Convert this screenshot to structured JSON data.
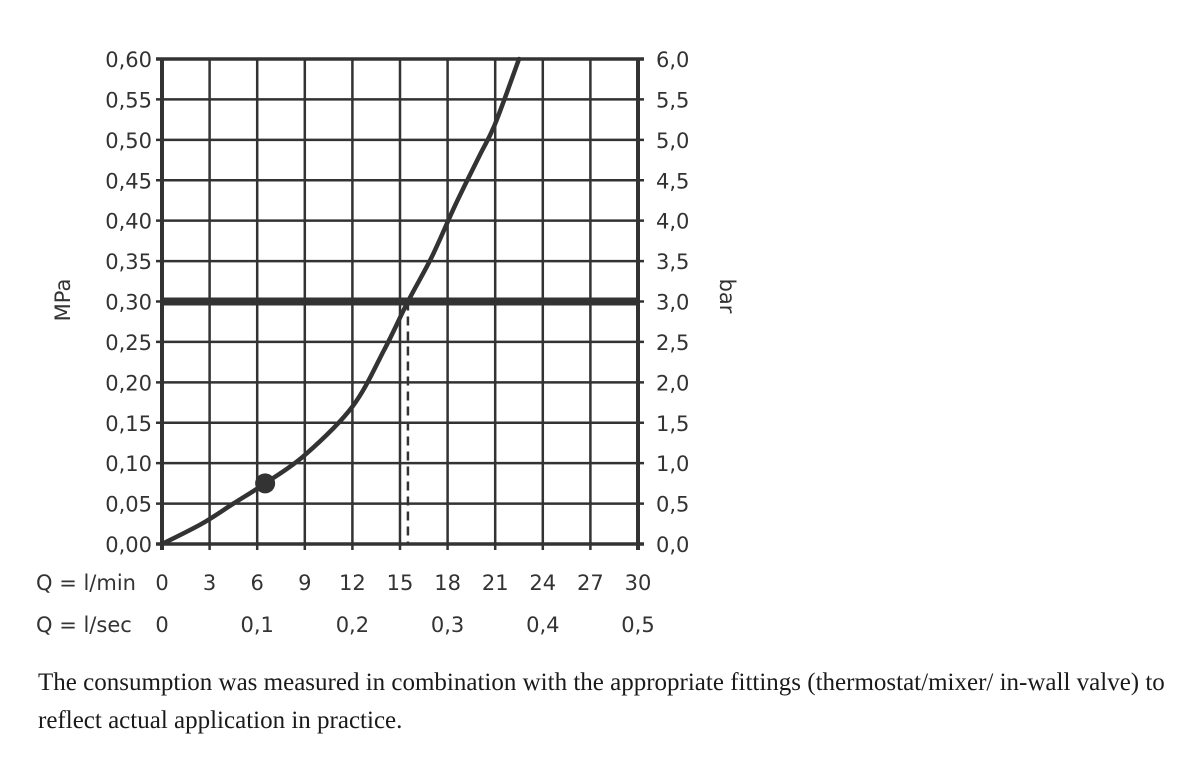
{
  "chart_data": {
    "type": "line",
    "title": "",
    "ylabel_left": "MPa",
    "ylabel_right": "bar",
    "xlabel_rows": [
      {
        "label": "Q = l/min",
        "ticks": [
          "0",
          "3",
          "6",
          "9",
          "12",
          "15",
          "18",
          "21",
          "24",
          "27",
          "30"
        ]
      },
      {
        "label": "Q = l/sec",
        "ticks": [
          "0",
          "0,1",
          "0,2",
          "0,3",
          "0,4",
          "0,5"
        ]
      }
    ],
    "y_ticks_left": [
      "0,00",
      "0,05",
      "0,10",
      "0,15",
      "0,20",
      "0,25",
      "0,30",
      "0,35",
      "0,40",
      "0,45",
      "0,50",
      "0,55",
      "0,60"
    ],
    "y_ticks_right": [
      "0,0",
      "0,5",
      "1,0",
      "1,5",
      "2,0",
      "2,5",
      "3,0",
      "3,5",
      "4,0",
      "4,5",
      "5,0",
      "5,5",
      "6,0"
    ],
    "xlim": [
      0,
      30
    ],
    "ylim": [
      0,
      0.6
    ],
    "grid": true,
    "series": [
      {
        "name": "flow curve",
        "x": [
          0,
          2.5,
          4.5,
          6.5,
          9,
          12,
          14,
          15.5,
          17,
          18.5,
          20,
          21,
          22.5
        ],
        "y": [
          0,
          0.025,
          0.05,
          0.075,
          0.11,
          0.17,
          0.24,
          0.3,
          0.355,
          0.42,
          0.48,
          0.52,
          0.6
        ]
      }
    ],
    "annotations": [
      {
        "type": "reference-line",
        "orientation": "horizontal",
        "y": 0.3,
        "label": "0,30 MPa / 3,0 bar (thick)"
      },
      {
        "type": "dashed-line",
        "orientation": "vertical",
        "x": 15.5,
        "from_y": 0,
        "to_y": 0.3
      },
      {
        "type": "marker",
        "x": 6.5,
        "y": 0.075,
        "shape": "filled-circle"
      }
    ]
  },
  "caption": "The consumption was measured in combination with the appropriate fittings (thermostat/mixer/ in-wall valve) to reflect actual application in practice.",
  "colors": {
    "ink": "#333333",
    "background": "#ffffff"
  }
}
